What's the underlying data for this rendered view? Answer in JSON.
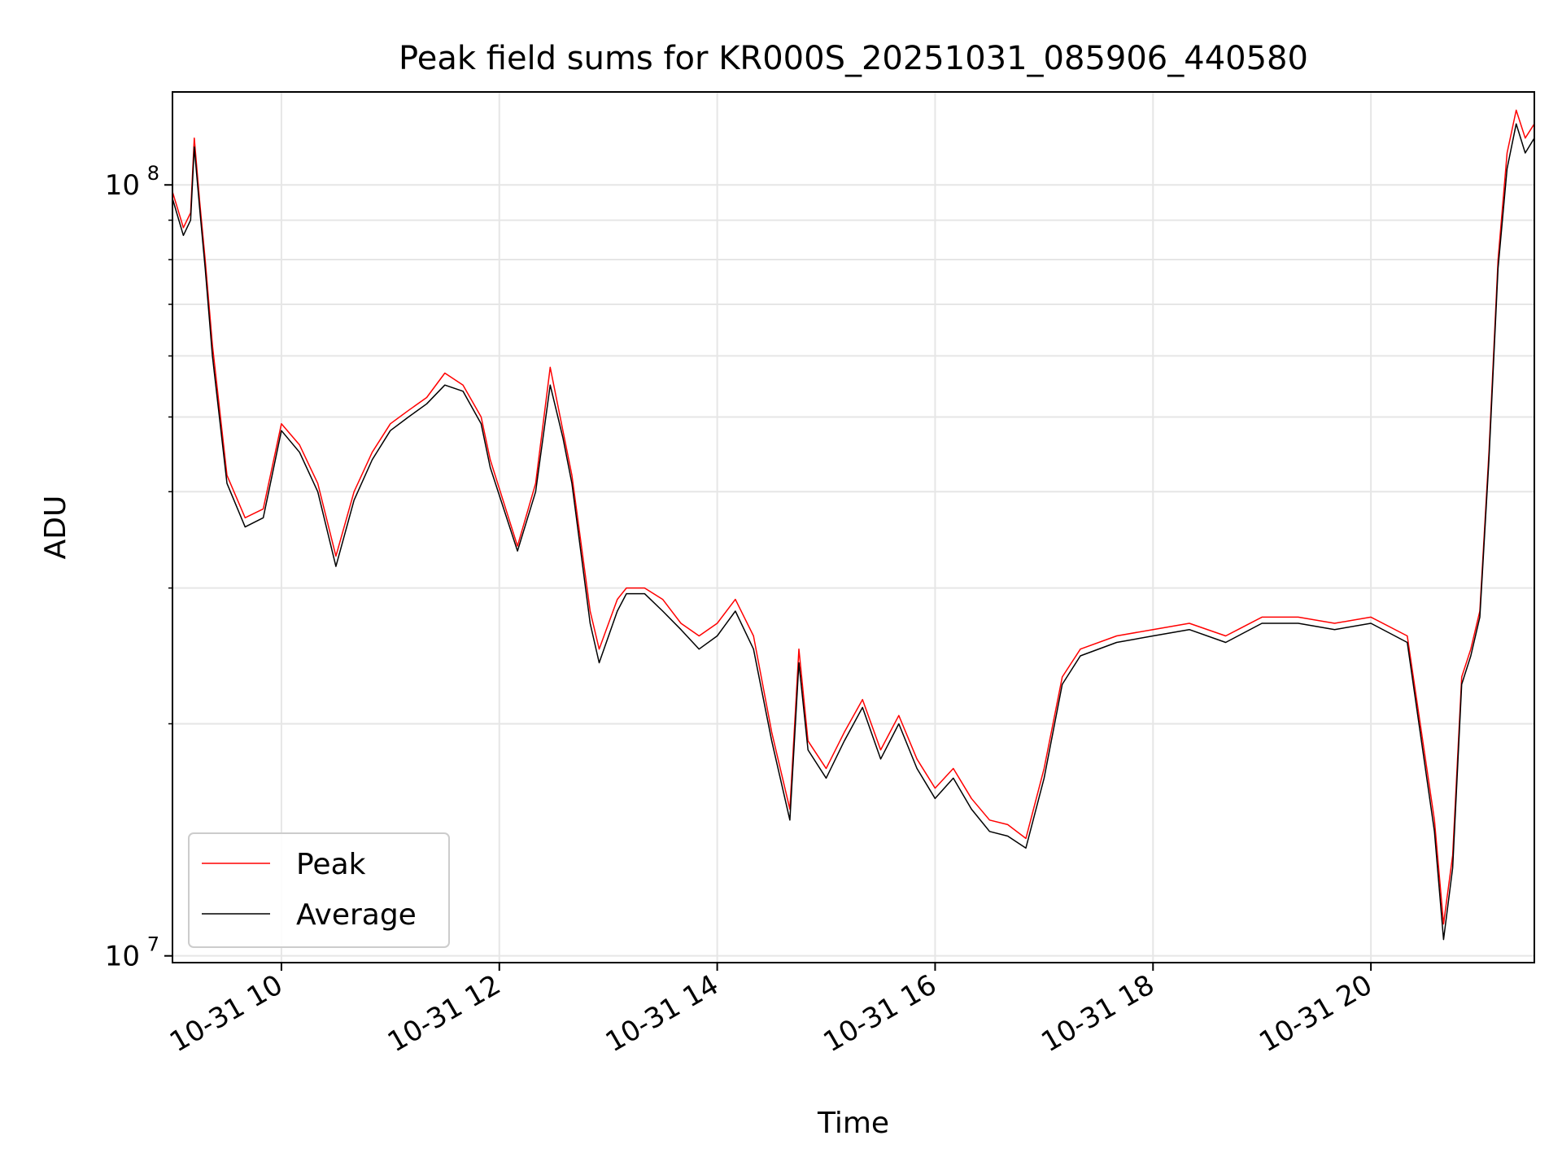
{
  "chart_data": {
    "type": "line",
    "title": "Peak field sums for KR000S_20251031_085906_440580",
    "xlabel": "Time",
    "ylabel": "ADU",
    "y_scale": "log",
    "ylim": [
      9800000,
      132000000
    ],
    "xlim": [
      "2025-10-31 09:00",
      "2025-10-31 21:30"
    ],
    "x_ticks": [
      "2025-10-31 10:00",
      "2025-10-31 12:00",
      "2025-10-31 14:00",
      "2025-10-31 16:00",
      "2025-10-31 18:00",
      "2025-10-31 20:00"
    ],
    "x_tick_labels": [
      "10-31 10",
      "10-31 12",
      "10-31 14",
      "10-31 16",
      "10-31 18",
      "10-31 20"
    ],
    "y_ticks": [
      10000000,
      100000000
    ],
    "y_tick_labels": [
      {
        "base": "10",
        "exp": "7"
      },
      {
        "base": "10",
        "exp": "8"
      }
    ],
    "grid": true,
    "legend": "lower-left",
    "x": [
      "2025-10-31 09:00",
      "2025-10-31 09:06",
      "2025-10-31 09:10",
      "2025-10-31 09:12",
      "2025-10-31 09:15",
      "2025-10-31 09:18",
      "2025-10-31 09:22",
      "2025-10-31 09:30",
      "2025-10-31 09:40",
      "2025-10-31 09:50",
      "2025-10-31 10:00",
      "2025-10-31 10:10",
      "2025-10-31 10:20",
      "2025-10-31 10:30",
      "2025-10-31 10:40",
      "2025-10-31 10:50",
      "2025-10-31 11:00",
      "2025-10-31 11:10",
      "2025-10-31 11:20",
      "2025-10-31 11:30",
      "2025-10-31 11:40",
      "2025-10-31 11:50",
      "2025-10-31 11:55",
      "2025-10-31 12:10",
      "2025-10-31 12:20",
      "2025-10-31 12:28",
      "2025-10-31 12:35",
      "2025-10-31 12:40",
      "2025-10-31 12:50",
      "2025-10-31 12:55",
      "2025-10-31 13:05",
      "2025-10-31 13:10",
      "2025-10-31 13:20",
      "2025-10-31 13:30",
      "2025-10-31 13:40",
      "2025-10-31 13:50",
      "2025-10-31 14:00",
      "2025-10-31 14:10",
      "2025-10-31 14:20",
      "2025-10-31 14:30",
      "2025-10-31 14:40",
      "2025-10-31 14:45",
      "2025-10-31 14:50",
      "2025-10-31 15:00",
      "2025-10-31 15:10",
      "2025-10-31 15:20",
      "2025-10-31 15:30",
      "2025-10-31 15:40",
      "2025-10-31 15:50",
      "2025-10-31 16:00",
      "2025-10-31 16:10",
      "2025-10-31 16:20",
      "2025-10-31 16:30",
      "2025-10-31 16:40",
      "2025-10-31 16:50",
      "2025-10-31 17:00",
      "2025-10-31 17:10",
      "2025-10-31 17:20",
      "2025-10-31 17:40",
      "2025-10-31 18:00",
      "2025-10-31 18:20",
      "2025-10-31 18:40",
      "2025-10-31 19:00",
      "2025-10-31 19:20",
      "2025-10-31 19:40",
      "2025-10-31 20:00",
      "2025-10-31 20:20",
      "2025-10-31 20:35",
      "2025-10-31 20:40",
      "2025-10-31 20:45",
      "2025-10-31 20:50",
      "2025-10-31 20:55",
      "2025-10-31 21:00",
      "2025-10-31 21:05",
      "2025-10-31 21:10",
      "2025-10-31 21:15",
      "2025-10-31 21:20",
      "2025-10-31 21:25",
      "2025-10-31 21:30"
    ],
    "series": [
      {
        "name": "Peak",
        "color": "#ff0000",
        "values": [
          98000000,
          88000000,
          92000000,
          115000000,
          95000000,
          80000000,
          62000000,
          42000000,
          37000000,
          38000000,
          49000000,
          46000000,
          41000000,
          33000000,
          40000000,
          45000000,
          49000000,
          51000000,
          53000000,
          57000000,
          55000000,
          50000000,
          44000000,
          34000000,
          41000000,
          58000000,
          48000000,
          42000000,
          28000000,
          25000000,
          29000000,
          30000000,
          30000000,
          29000000,
          27000000,
          26000000,
          27000000,
          29000000,
          26000000,
          19500000,
          15500000,
          25000000,
          19000000,
          17500000,
          19500000,
          21500000,
          18500000,
          20500000,
          18000000,
          16500000,
          17500000,
          16000000,
          15000000,
          14800000,
          14200000,
          17500000,
          23000000,
          25000000,
          26000000,
          26500000,
          27000000,
          26000000,
          27500000,
          27500000,
          27000000,
          27500000,
          26000000,
          15000000,
          11000000,
          13500000,
          23000000,
          25000000,
          28000000,
          45000000,
          80000000,
          110000000,
          125000000,
          115000000,
          120000000
        ]
      },
      {
        "name": "Average",
        "color": "#000000",
        "values": [
          96000000,
          86000000,
          90000000,
          112000000,
          93000000,
          78000000,
          60000000,
          41000000,
          36000000,
          37000000,
          48000000,
          45000000,
          40000000,
          32000000,
          39000000,
          44000000,
          48000000,
          50000000,
          52000000,
          55000000,
          54000000,
          49000000,
          43000000,
          33500000,
          40000000,
          55000000,
          47000000,
          41000000,
          27000000,
          24000000,
          28000000,
          29500000,
          29500000,
          28000000,
          26500000,
          25000000,
          26000000,
          28000000,
          25000000,
          19000000,
          15000000,
          24000000,
          18500000,
          17000000,
          19000000,
          21000000,
          18000000,
          20000000,
          17500000,
          16000000,
          17000000,
          15500000,
          14500000,
          14300000,
          13800000,
          17000000,
          22500000,
          24500000,
          25500000,
          26000000,
          26500000,
          25500000,
          27000000,
          27000000,
          26500000,
          27000000,
          25500000,
          14500000,
          10500000,
          13000000,
          22500000,
          24500000,
          27500000,
          44000000,
          78000000,
          105000000,
          120000000,
          110000000,
          115000000
        ]
      }
    ]
  }
}
